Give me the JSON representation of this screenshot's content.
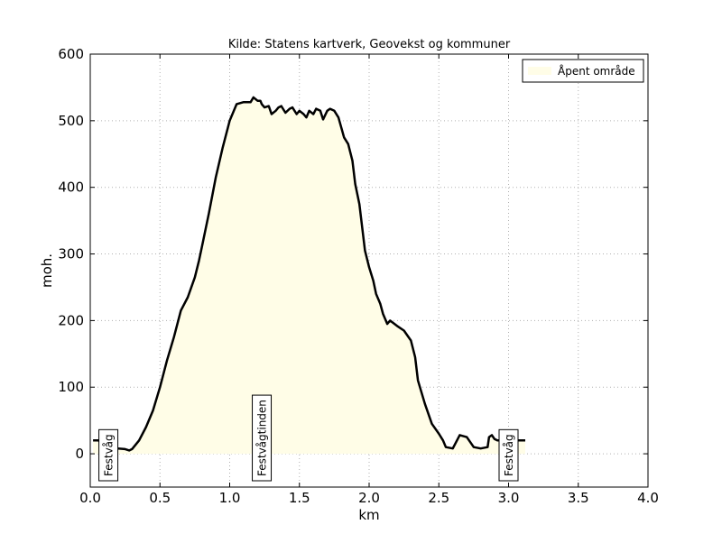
{
  "chart_data": {
    "type": "area",
    "title": "Kilde: Statens kartverk, Geovekst og kommuner",
    "xlabel": "km",
    "ylabel": "moh.",
    "xlim": [
      0.0,
      4.0
    ],
    "ylim": [
      -50,
      600
    ],
    "xticks": [
      "0.0",
      "0.5",
      "1.0",
      "1.5",
      "2.0",
      "2.5",
      "3.0",
      "3.5",
      "4.0"
    ],
    "yticks": [
      "0",
      "100",
      "200",
      "300",
      "400",
      "500",
      "600"
    ],
    "grid": true,
    "legend": {
      "placement": "top-right",
      "entries": [
        {
          "label": "Åpent område",
          "color": "#fffde7"
        }
      ]
    },
    "colors": {
      "fill": "#fffde7",
      "line": "#000000"
    },
    "series": [
      {
        "x": [
          0.02,
          0.06,
          0.1,
          0.15,
          0.2,
          0.25,
          0.28,
          0.3,
          0.35,
          0.4,
          0.45,
          0.5,
          0.55,
          0.6,
          0.65,
          0.7,
          0.75,
          0.78,
          0.8,
          0.85,
          0.9,
          0.95,
          1.0,
          1.05,
          1.1,
          1.15,
          1.17,
          1.2,
          1.22,
          1.23,
          1.25,
          1.28,
          1.3,
          1.33,
          1.35,
          1.37,
          1.4,
          1.43,
          1.45,
          1.48,
          1.5,
          1.53,
          1.55,
          1.57,
          1.6,
          1.62,
          1.65,
          1.67,
          1.7,
          1.72,
          1.75,
          1.78,
          1.8,
          1.82,
          1.85,
          1.88,
          1.9,
          1.93,
          1.95,
          1.97,
          2.0,
          2.03,
          2.05,
          2.08,
          2.1,
          2.13,
          2.15,
          2.2,
          2.25,
          2.3,
          2.33,
          2.35,
          2.4,
          2.45,
          2.5,
          2.53,
          2.55,
          2.6,
          2.65,
          2.7,
          2.75,
          2.8,
          2.85,
          2.86,
          2.88,
          2.9,
          2.92,
          2.93,
          2.95,
          3.0,
          3.05,
          3.08,
          3.12
        ],
        "y": [
          20,
          20,
          10,
          8,
          8,
          7,
          5,
          7,
          20,
          40,
          65,
          100,
          140,
          175,
          215,
          235,
          265,
          290,
          310,
          360,
          415,
          460,
          500,
          525,
          528,
          528,
          535,
          530,
          530,
          525,
          520,
          522,
          510,
          515,
          520,
          522,
          512,
          518,
          520,
          510,
          515,
          510,
          505,
          515,
          510,
          518,
          515,
          502,
          515,
          518,
          515,
          505,
          490,
          475,
          465,
          440,
          405,
          375,
          340,
          305,
          280,
          260,
          240,
          225,
          210,
          195,
          200,
          192,
          185,
          170,
          145,
          110,
          75,
          45,
          30,
          20,
          10,
          8,
          28,
          25,
          10,
          8,
          10,
          25,
          28,
          22,
          20,
          20,
          20,
          20,
          20,
          20,
          20
        ]
      }
    ],
    "annotations": [
      {
        "text": "Festvåg",
        "x": 0.13
      },
      {
        "text": "Festvågtinden",
        "x": 1.23
      },
      {
        "text": "Festvåg",
        "x": 3.0
      }
    ]
  }
}
